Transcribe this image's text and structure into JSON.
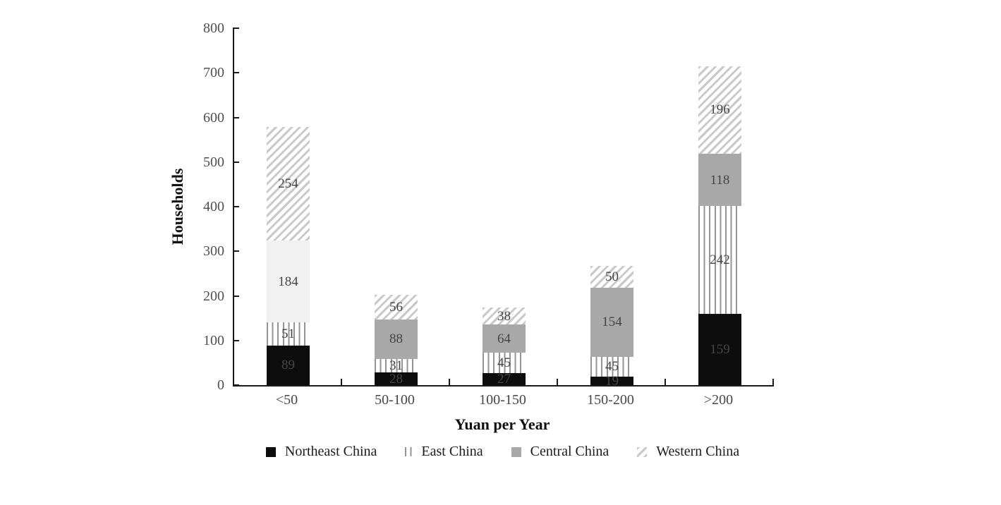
{
  "chart_data": {
    "type": "bar",
    "stacked": true,
    "title": "",
    "xlabel": "Yuan per Year",
    "ylabel": "Households",
    "categories": [
      "<50",
      "50-100",
      "100-150",
      "150-200",
      ">200"
    ],
    "series": [
      {
        "name": "Northeast China",
        "style": "solid-black",
        "values": [
          89,
          28,
          27,
          19,
          159
        ]
      },
      {
        "name": "East China",
        "style": "vertical-lines",
        "values": [
          51,
          31,
          45,
          45,
          242
        ]
      },
      {
        "name": "Central China",
        "style": "solid-gray",
        "values": [
          184,
          88,
          64,
          154,
          118
        ],
        "fill_overrides": [
          "#f1f1f1",
          null,
          null,
          null,
          null
        ]
      },
      {
        "name": "Western China",
        "style": "diagonal-hatch",
        "values": [
          254,
          56,
          38,
          50,
          196
        ]
      }
    ],
    "ylim": [
      0,
      800
    ],
    "ytick_labels": [
      "0",
      "100",
      "200",
      "300",
      "400",
      "500",
      "600",
      "700",
      "800"
    ],
    "grid": false,
    "legend_position": "bottom",
    "colors": {
      "black_fill": "#0d0d0d",
      "gray_fill": "#a8a8a8",
      "light_fill_first_bar_central": "#f1f1f1",
      "line_pattern": "#949494",
      "hatch_pattern": "#c9c9c9",
      "segment_label": "#454545",
      "tick_label": "#4f4f4f",
      "axis": "#1a1a1a",
      "background": "#ffffff"
    }
  }
}
